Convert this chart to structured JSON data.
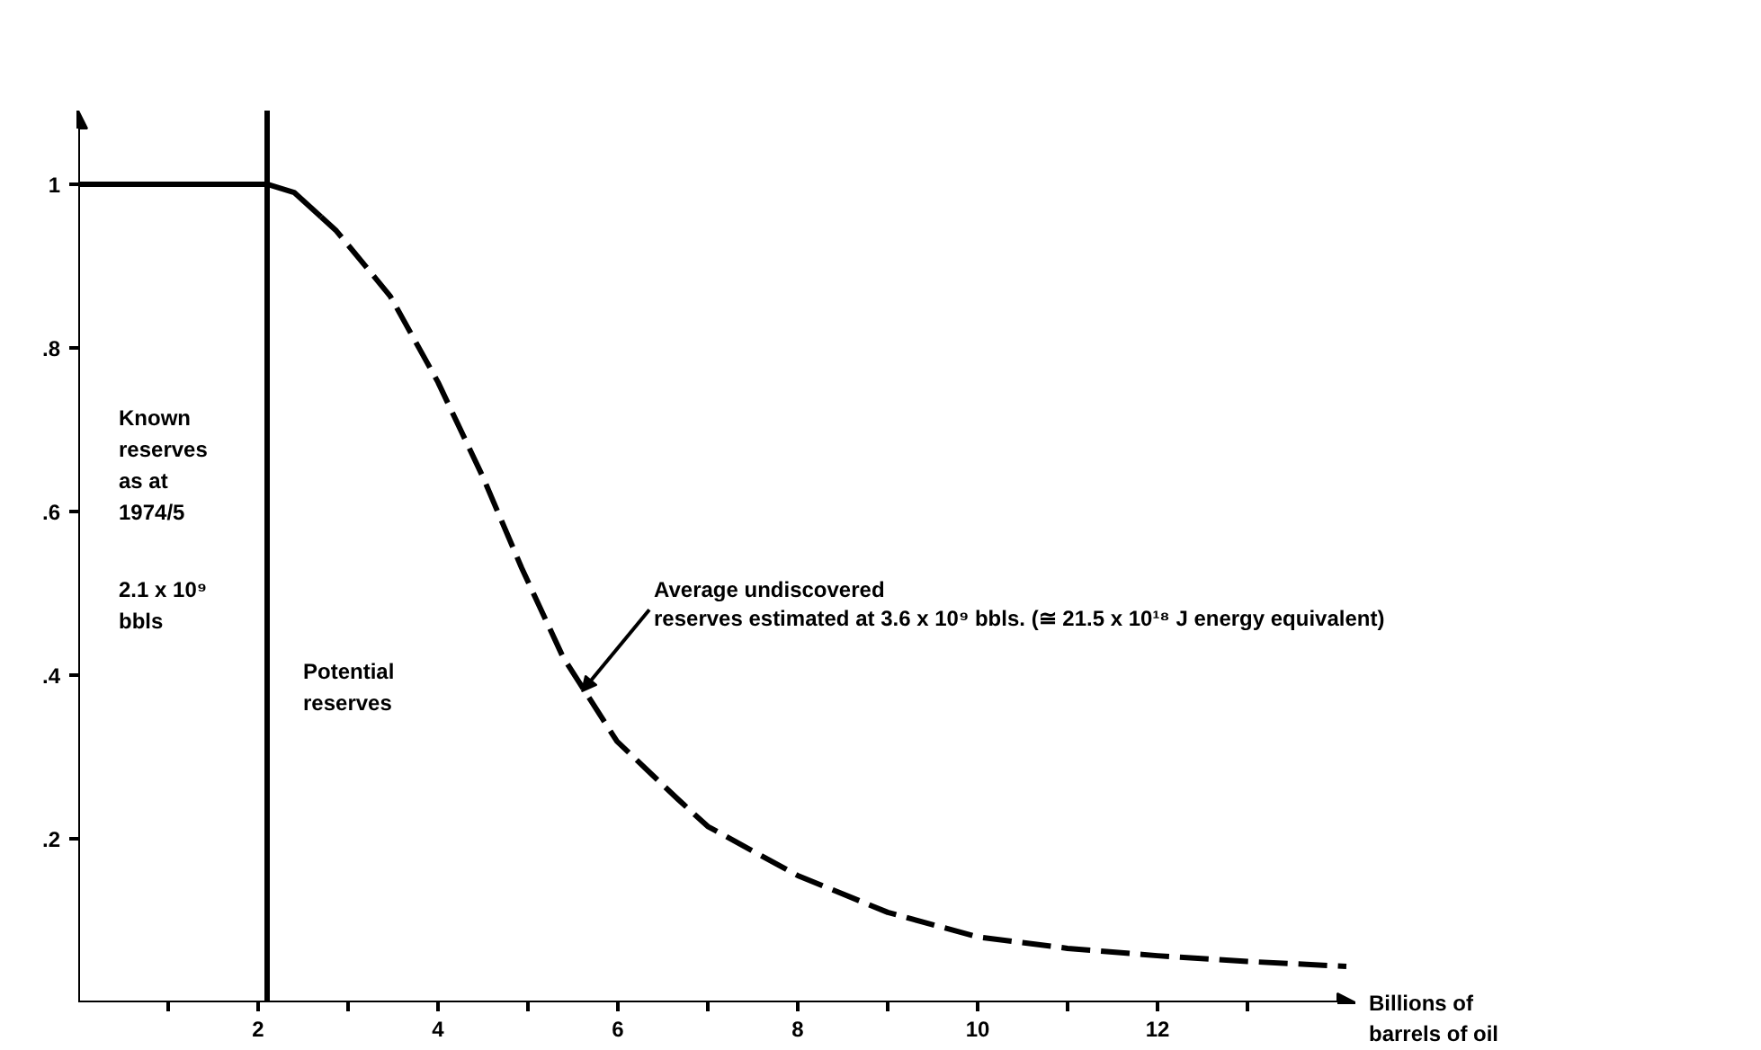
{
  "chart_data": {
    "type": "line",
    "xlabel": "Billions of\nbarrels of oil",
    "xlim": [
      0,
      14.2
    ],
    "ylim": [
      0,
      1.09
    ],
    "xticks": [
      {
        "value": 1,
        "label": null
      },
      2,
      {
        "value": 3,
        "label": null
      },
      4,
      {
        "value": 5,
        "label": null
      },
      6,
      {
        "value": 7,
        "label": null
      },
      8,
      {
        "value": 9,
        "label": null
      },
      10,
      {
        "value": 11,
        "label": null
      },
      12,
      {
        "value": 13,
        "label": null
      }
    ],
    "yticks": [
      {
        "value": 0.2,
        "label": ".2"
      },
      {
        "value": 0.4,
        "label": ".4"
      },
      {
        "value": 0.6,
        "label": ".6"
      },
      {
        "value": 0.8,
        "label": ".8"
      },
      1
    ],
    "series": [
      {
        "color": "#000000",
        "line_style": "solid",
        "x": [
          0,
          2.1,
          2.4,
          2.7
        ],
        "values": [
          1,
          1,
          0.99,
          0.96
        ]
      },
      {
        "color": "#000000",
        "line_style": "dashed",
        "x": [
          2.7,
          2.87,
          3.47,
          4.0,
          4.5,
          4.93,
          5.39,
          5.99,
          6.67,
          7.0,
          8.0,
          9.0,
          10.0,
          11.0,
          12.0,
          13.0,
          14.1
        ],
        "values": [
          0.96,
          0.943,
          0.863,
          0.758,
          0.642,
          0.531,
          0.422,
          0.319,
          0.248,
          0.215,
          0.155,
          0.11,
          0.08,
          0.066,
          0.057,
          0.05,
          0.044
        ]
      }
    ],
    "ref_lines": [
      {
        "axis": "x",
        "value": 2.1,
        "color": "#000000",
        "line_style": "solid"
      }
    ],
    "annotations": [
      "Known\nreserves\nas at\n1974/5",
      "2.1 x 10⁹\n      bbls",
      "Potential\nreserves",
      {
        "text": "Average undiscovered\nreserves estimated at 3.6 x 10⁹ bbls. (≅ 21.5 x 10¹⁸ J energy equivalent)",
        "x": 5.6,
        "y": 0.38
      }
    ],
    "grid": false,
    "marker": "none"
  }
}
